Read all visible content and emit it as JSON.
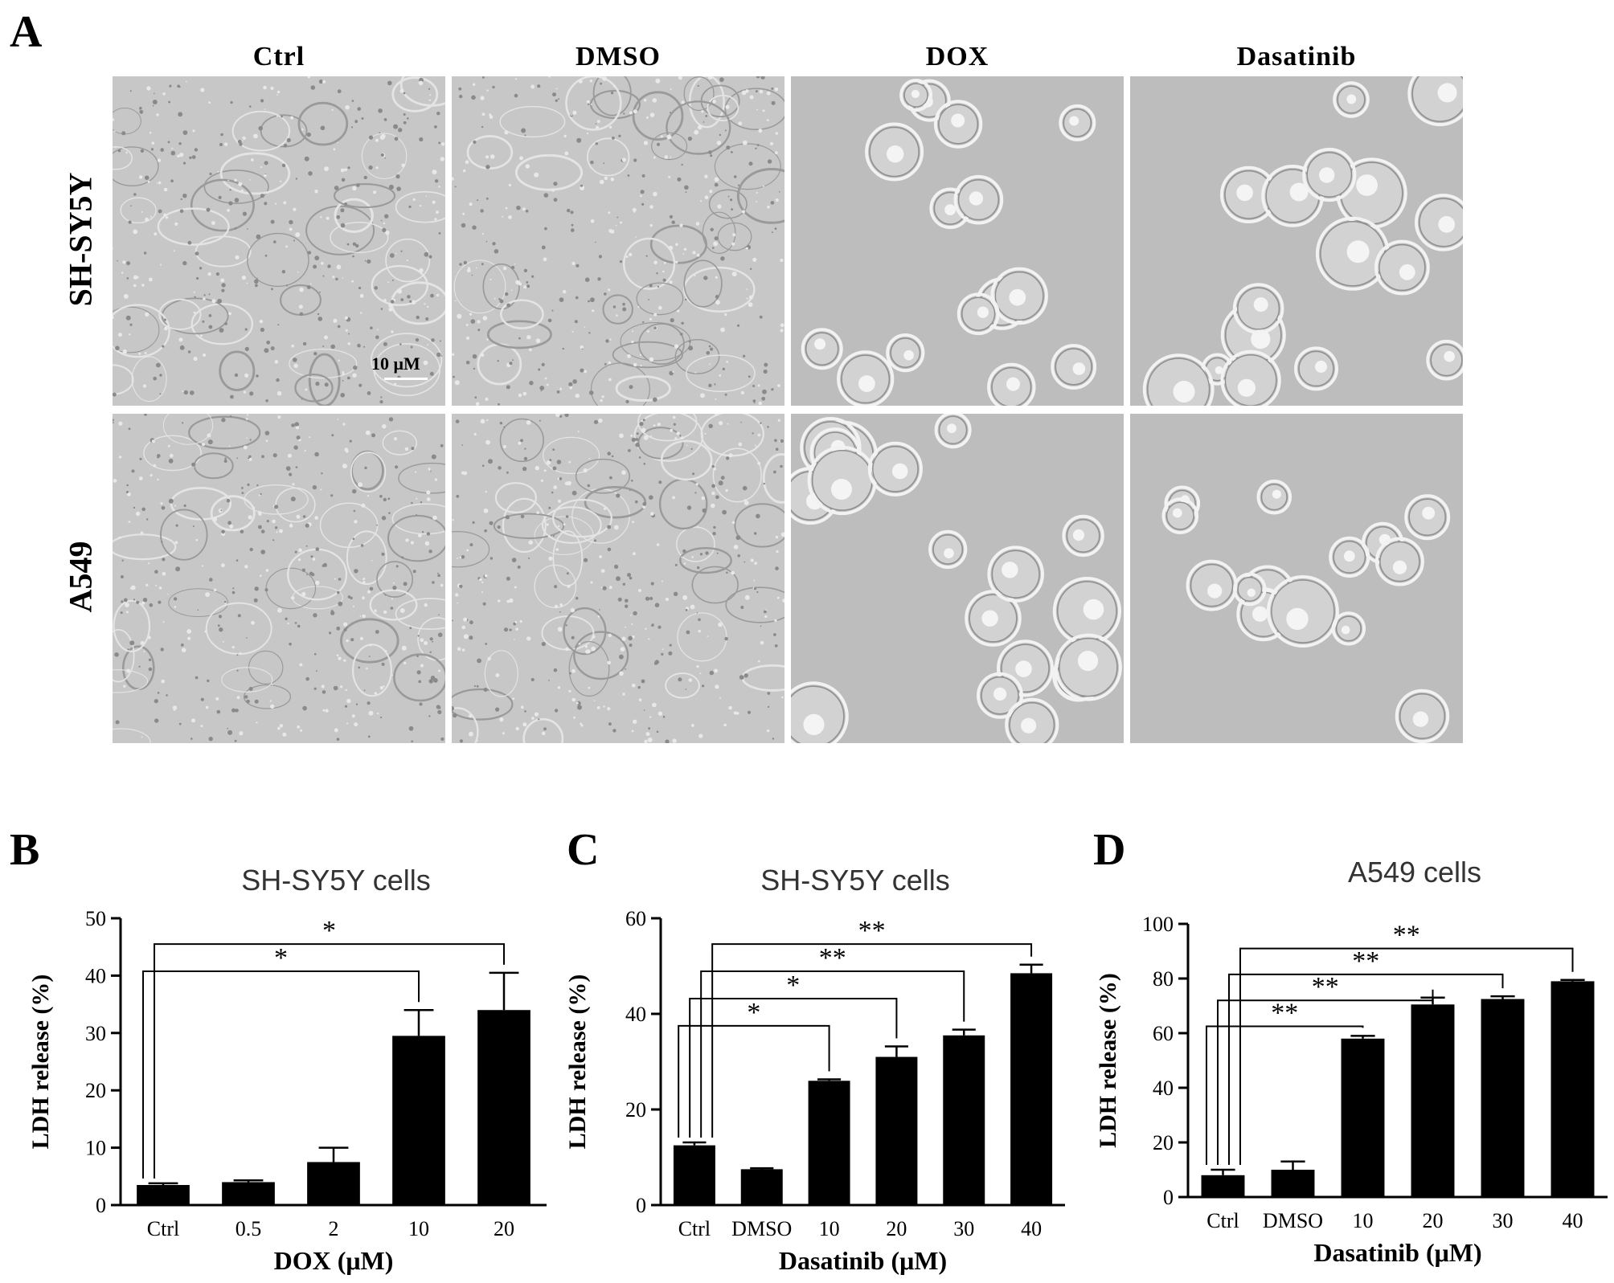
{
  "panel_letters": {
    "a": "A",
    "b": "B",
    "c": "C",
    "d": "D"
  },
  "micrograph_grid": {
    "columns": [
      "Ctrl",
      "DMSO",
      "DOX",
      "Dasatinib"
    ],
    "rows": [
      "SH-SY5Y",
      "A549"
    ],
    "scale_bar": "10 μM"
  },
  "chart_data": [
    {
      "type": "bar",
      "panel": "B",
      "title": "SH-SY5Y cells",
      "xlabel": "DOX (μM)",
      "ylabel": "LDH release (%)",
      "ylim": [
        0,
        50
      ],
      "yticks": [
        "0",
        "10",
        "20",
        "30",
        "40",
        "50"
      ],
      "categories": [
        "Ctrl",
        "0.5",
        "2",
        "10",
        "20"
      ],
      "values": [
        3.5,
        4,
        7.5,
        29.5,
        34
      ],
      "errors": [
        0.3,
        0.3,
        2.5,
        4.5,
        6.5
      ],
      "significance": [
        {
          "from": 0,
          "to": 3,
          "label": "*"
        },
        {
          "from": 0,
          "to": 4,
          "label": "*"
        }
      ]
    },
    {
      "type": "bar",
      "panel": "C",
      "title": "SH-SY5Y cells",
      "xlabel": "Dasatinib (μM)",
      "ylabel": "LDH release (%)",
      "ylim": [
        0,
        60
      ],
      "yticks": [
        "0",
        "20",
        "40",
        "60"
      ],
      "categories": [
        "Ctrl",
        "DMSO",
        "10",
        "20",
        "30",
        "40"
      ],
      "values": [
        12.5,
        7.5,
        26,
        31,
        35.5,
        48.5
      ],
      "errors": [
        0.6,
        0.2,
        0.3,
        2.2,
        1.2,
        1.8
      ],
      "significance": [
        {
          "from": 0,
          "to": 2,
          "label": "*"
        },
        {
          "from": 0,
          "to": 3,
          "label": "*"
        },
        {
          "from": 0,
          "to": 4,
          "label": "**"
        },
        {
          "from": 0,
          "to": 5,
          "label": "**"
        }
      ]
    },
    {
      "type": "bar",
      "panel": "D",
      "title": "A549 cells",
      "xlabel": "Dasatinib (μM)",
      "ylabel": "LDH release (%)",
      "ylim": [
        0,
        100
      ],
      "yticks": [
        "0",
        "20",
        "40",
        "60",
        "80",
        "100"
      ],
      "categories": [
        "Ctrl",
        "DMSO",
        "10",
        "20",
        "30",
        "40"
      ],
      "values": [
        8,
        10,
        58,
        70.5,
        72.5,
        79
      ],
      "errors": [
        2,
        3,
        1,
        2.5,
        1,
        0.5
      ],
      "significance": [
        {
          "from": 0,
          "to": 2,
          "label": "**"
        },
        {
          "from": 0,
          "to": 3,
          "label": "**"
        },
        {
          "from": 0,
          "to": 4,
          "label": "**"
        },
        {
          "from": 0,
          "to": 5,
          "label": "**"
        }
      ]
    }
  ]
}
